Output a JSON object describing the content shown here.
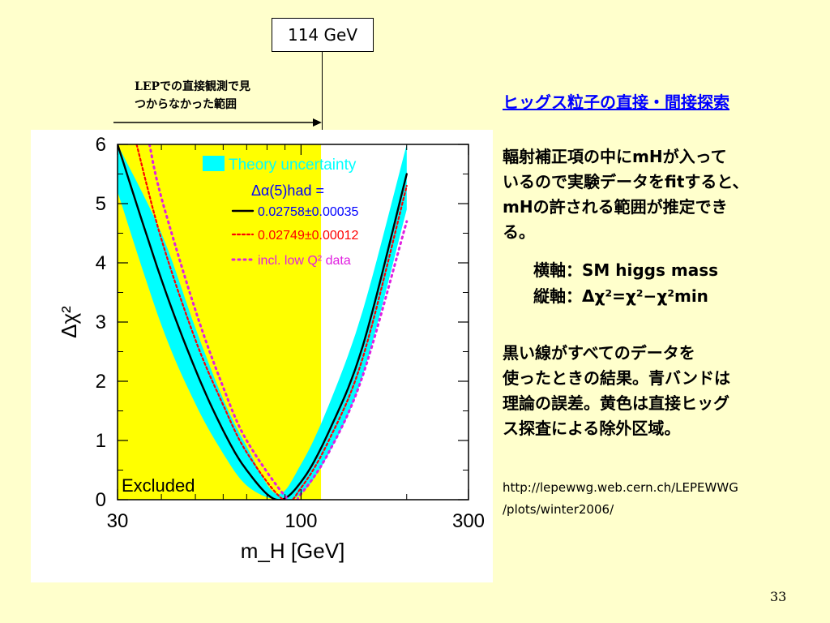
{
  "slide": {
    "mass_label": "114 GeV",
    "lep_note_line1": "LEPでの直接観測で見",
    "lep_note_line2": "つからなかった範囲",
    "title": "ヒッグス粒子の直接・間接探索",
    "desc_lines": [
      "輻射補正項の中にmHが入って",
      "いるので実験データをfitすると、",
      "mHの許される範囲が推定でき",
      "る。"
    ],
    "xaxis_note": "横軸：SM higgs mass",
    "yaxis_note_prefix": "縦軸：",
    "yaxis_note_formula": "Δχ²=χ²−χ²min",
    "legend_lines": [
      "黒い線がすべてのデータを",
      "使ったときの結果。青バンドは",
      "理論の誤差。黄色は直接ヒッグ",
      "ス探査による除外区域。"
    ],
    "url_line1": "http://lepewwg.web.cern.ch/LEPEWWG",
    "url_line2": "/plots/winter2006/",
    "page_number": "33"
  },
  "colors": {
    "slide_bg": "#FFFFCC",
    "excluded": "#FFFF00",
    "theory_band": "#00FFFF",
    "central_fit": "#000000",
    "alt_fit": "#FF0000",
    "lowq2_fit": "#E020E0",
    "title_link": "#0000FF",
    "legend_text": "#0000FF"
  },
  "chart_data": {
    "type": "line",
    "xscale": "log",
    "xlim": [
      30,
      300
    ],
    "ylim": [
      0,
      6
    ],
    "xticks": [
      30,
      100,
      300
    ],
    "xtick_labels": [
      "30",
      "100",
      "300"
    ],
    "yticks": [
      0,
      1,
      2,
      3,
      4,
      5,
      6
    ],
    "xlabel": "m_H [GeV]",
    "ylabel": "Δχ²",
    "excluded_region": {
      "x": [
        30,
        114
      ],
      "label": "Excluded"
    },
    "legend": {
      "band_label": "Theory uncertainty",
      "header": "Δα(5)had =",
      "entries": [
        "0.02758±0.00035",
        "0.02749±0.00012",
        "incl. low Q² data"
      ]
    },
    "series": [
      {
        "name": "0.02758±0.00035",
        "style": "solid",
        "minimum_x": 85,
        "x": [
          30,
          40,
          50,
          60,
          70,
          85,
          100,
          120,
          150,
          200
        ],
        "y": [
          6.0,
          3.72,
          2.2,
          1.17,
          0.5,
          0.0,
          0.3,
          1.15,
          2.6,
          5.5
        ]
      },
      {
        "name": "0.02749±0.00012",
        "style": "dotted",
        "minimum_x": 89,
        "x": [
          34,
          40,
          50,
          60,
          70,
          89,
          100,
          120,
          150,
          200
        ],
        "y": [
          6.0,
          4.4,
          2.7,
          1.6,
          0.8,
          0.0,
          0.2,
          1.0,
          2.4,
          5.3
        ]
      },
      {
        "name": "incl. low Q² data",
        "style": "dotted",
        "minimum_x": 92,
        "x": [
          37,
          40,
          50,
          60,
          70,
          92,
          100,
          120,
          150,
          200
        ],
        "y": [
          6.0,
          5.1,
          3.2,
          1.9,
          1.0,
          0.0,
          0.1,
          0.8,
          2.1,
          4.7
        ]
      }
    ],
    "theory_band": {
      "x": [
        30,
        40,
        50,
        60,
        70,
        85,
        100,
        120,
        150,
        200
      ],
      "lower": [
        5.2,
        2.95,
        1.62,
        0.78,
        0.24,
        0.0,
        0.1,
        0.78,
        2.1,
        4.9
      ],
      "upper": [
        6.0,
        4.5,
        2.9,
        1.7,
        0.9,
        0.1,
        0.6,
        1.6,
        3.2,
        6.0
      ]
    }
  }
}
